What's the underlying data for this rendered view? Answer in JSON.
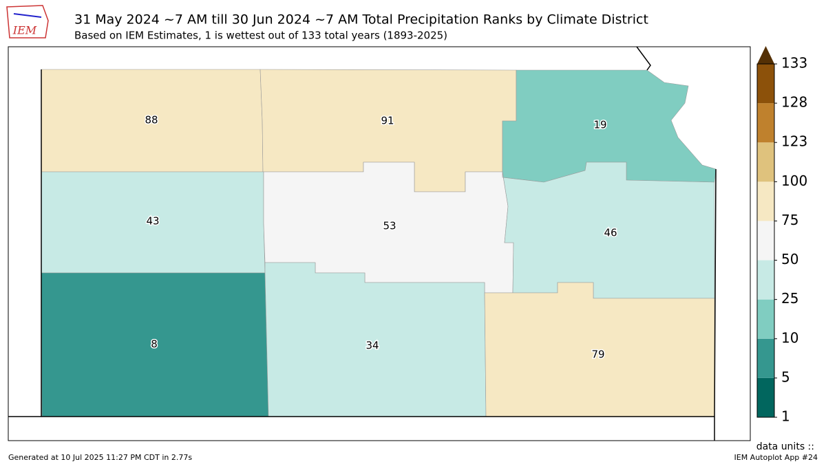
{
  "header": {
    "logo": "IEM",
    "title": "31 May 2024 ~7 AM till 30 Jun 2024 ~7 AM Total Precipitation Ranks by Climate District",
    "subtitle": "Based on IEM Estimates, 1 is wettest out of 133 total years (1893-2025)"
  },
  "districts": [
    {
      "rank": 88,
      "color": "#f6e8c3"
    },
    {
      "rank": 91,
      "color": "#f6e8c3"
    },
    {
      "rank": 19,
      "color": "#80cdc1"
    },
    {
      "rank": 43,
      "color": "#c7eae5"
    },
    {
      "rank": 53,
      "color": "#f5f5f5"
    },
    {
      "rank": 46,
      "color": "#c7eae5"
    },
    {
      "rank": 8,
      "color": "#35978f"
    },
    {
      "rank": 34,
      "color": "#c7eae5"
    },
    {
      "rank": 79,
      "color": "#f6e8c3"
    }
  ],
  "colorbar": {
    "levels": [
      1,
      5,
      10,
      25,
      50,
      75,
      100,
      123,
      128,
      133
    ],
    "colors": [
      "#01665e",
      "#35978f",
      "#80cdc1",
      "#c7eae5",
      "#f5f5f5",
      "#f6e8c3",
      "#dfc27d",
      "#bf812d",
      "#8c510a"
    ],
    "extend_color": "#543005",
    "units_label": "data units ::"
  },
  "footer": {
    "left": "Generated at 10 Jul 2025 11:27 PM CDT in 2.77s",
    "right": "IEM Autoplot App #24"
  }
}
